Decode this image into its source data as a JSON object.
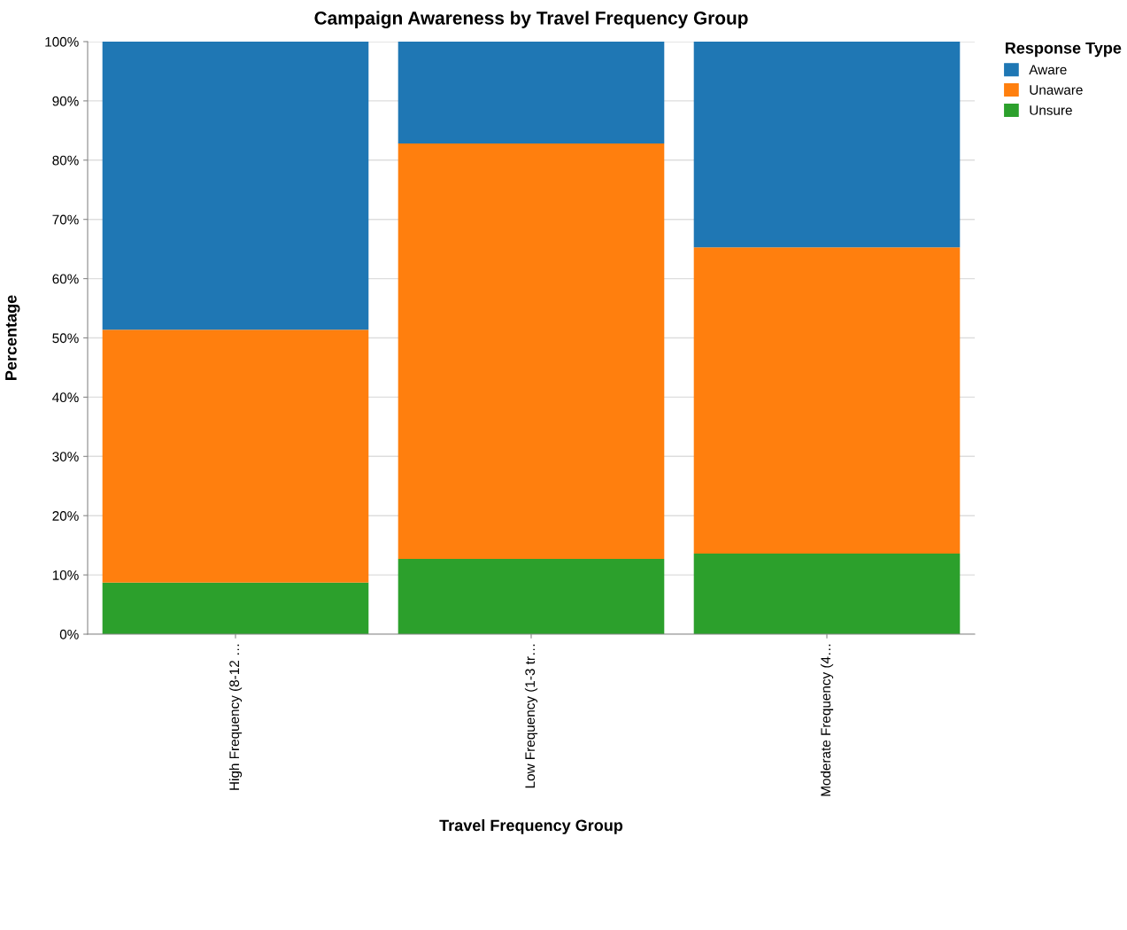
{
  "chart_data": {
    "type": "bar",
    "title": "Campaign Awareness by Travel Frequency Group",
    "xlabel": "Travel Frequency Group",
    "ylabel": "Percentage",
    "legend_title": "Response Type",
    "categories": [
      "High Frequency (8-12 …",
      "Low Frequency (1-3 tr…",
      "Moderate Frequency (4…"
    ],
    "stacked": true,
    "series": [
      {
        "name": "Unsure",
        "color": "#2ca02c",
        "values": [
          8.7,
          12.7,
          13.6
        ]
      },
      {
        "name": "Unaware",
        "color": "#ff7f0e",
        "values": [
          42.7,
          70.1,
          51.7
        ]
      },
      {
        "name": "Aware",
        "color": "#1f77b4",
        "values": [
          48.6,
          17.2,
          34.7
        ]
      }
    ],
    "ylim": [
      0,
      100
    ],
    "yticks": [
      {
        "value": 0,
        "label": "0%"
      },
      {
        "value": 10,
        "label": "10%"
      },
      {
        "value": 20,
        "label": "20%"
      },
      {
        "value": 30,
        "label": "30%"
      },
      {
        "value": 40,
        "label": "40%"
      },
      {
        "value": 50,
        "label": "50%"
      },
      {
        "value": 60,
        "label": "60%"
      },
      {
        "value": 70,
        "label": "70%"
      },
      {
        "value": 80,
        "label": "80%"
      },
      {
        "value": 90,
        "label": "90%"
      },
      {
        "value": 100,
        "label": "100%"
      }
    ],
    "grid": "y",
    "legend": "top right"
  }
}
